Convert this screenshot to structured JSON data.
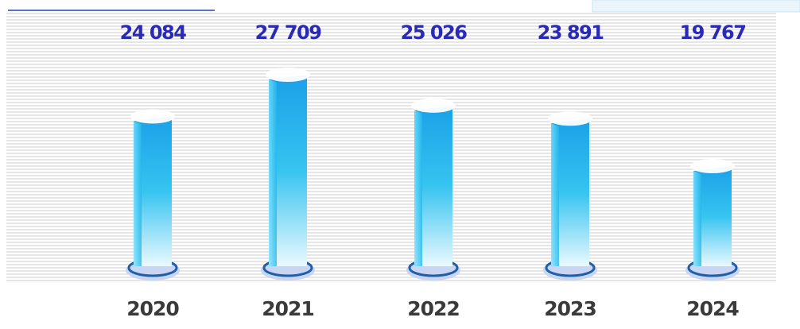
{
  "chart_data": {
    "type": "bar",
    "categories": [
      "2020",
      "2021",
      "2022",
      "2023",
      "2024"
    ],
    "values": [
      24084,
      27709,
      25026,
      23891,
      19767
    ],
    "value_labels": [
      "24 084",
      "27 709",
      "25 026",
      "23 891",
      "19 767"
    ],
    "color": "#1aa7e6"
  }
}
